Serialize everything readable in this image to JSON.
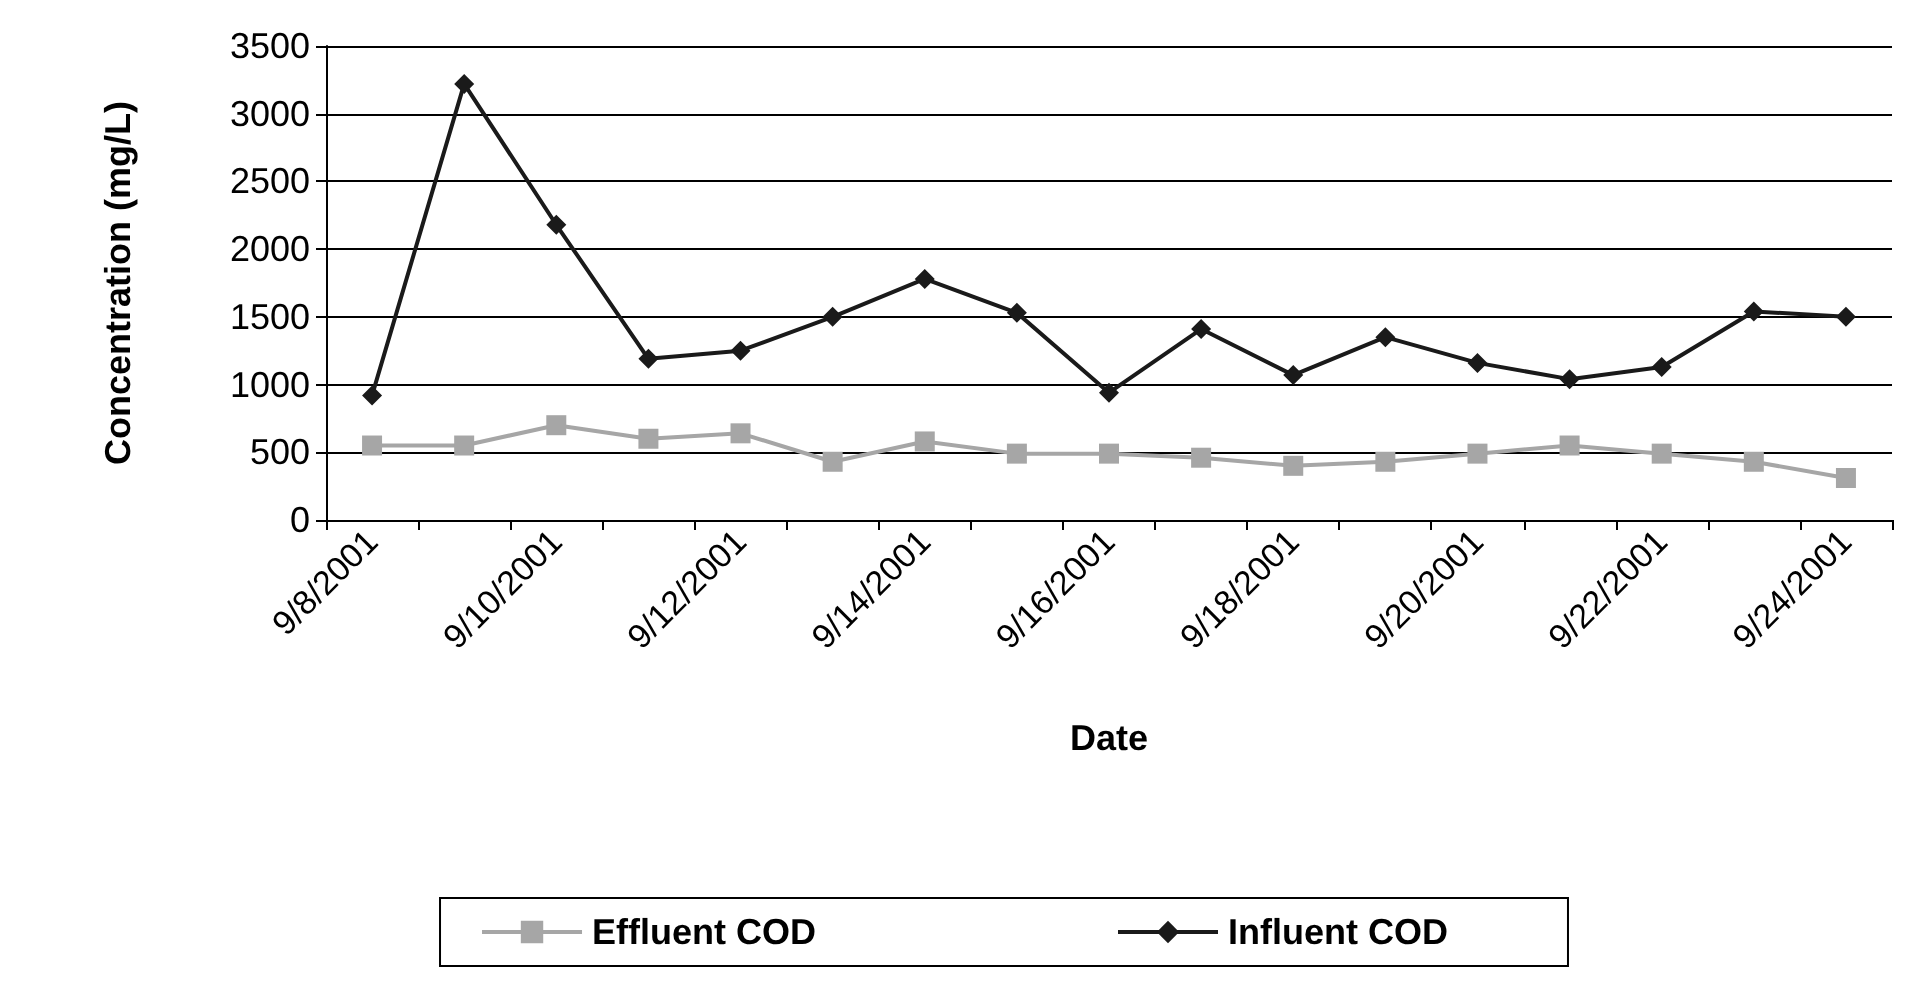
{
  "chart_data": {
    "type": "line",
    "xlabel": "Date",
    "ylabel": "Concentration (mg/L)",
    "categories": [
      "9/8/2001",
      null,
      "9/10/2001",
      null,
      "9/12/2001",
      null,
      "9/14/2001",
      null,
      "9/16/2001",
      null,
      "9/18/2001",
      null,
      "9/20/2001",
      null,
      "9/22/2001",
      null,
      "9/24/2001"
    ],
    "series": [
      {
        "name": "Effluent COD",
        "color": "#a6a6a6",
        "marker": "square",
        "values": [
          550,
          550,
          700,
          600,
          640,
          430,
          580,
          490,
          490,
          460,
          400,
          430,
          490,
          550,
          490,
          430,
          310
        ]
      },
      {
        "name": "Influent COD",
        "color": "#1a1a1a",
        "marker": "diamond",
        "values": [
          920,
          3220,
          2180,
          1190,
          1250,
          1500,
          1780,
          1530,
          940,
          1410,
          1070,
          1350,
          1160,
          1040,
          1130,
          1540,
          1500
        ]
      }
    ],
    "ylim": [
      0,
      3500
    ],
    "yticks": [
      0,
      500,
      1000,
      1500,
      2000,
      2500,
      3000,
      3500
    ],
    "grid": "y",
    "legend": "bottom"
  }
}
